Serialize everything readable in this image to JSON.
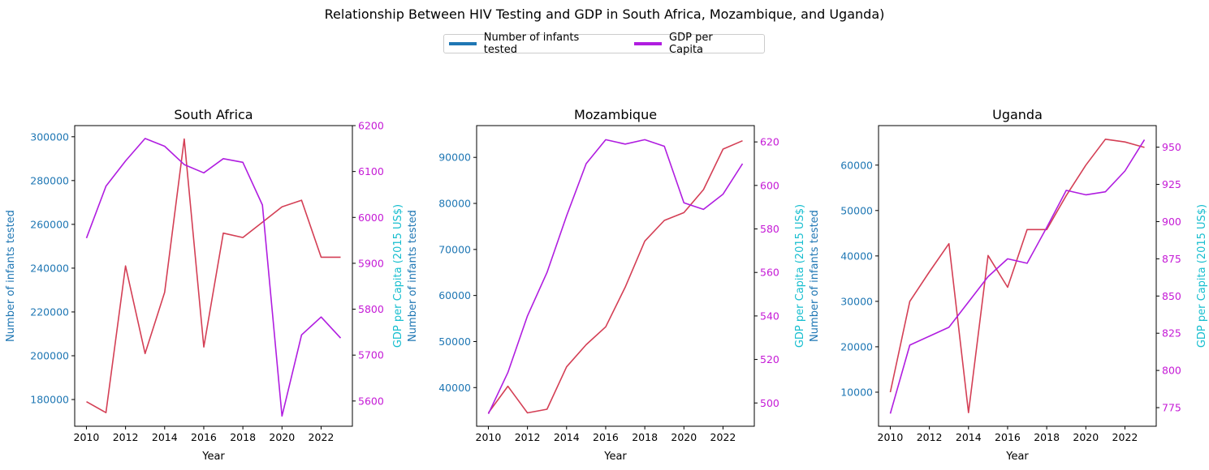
{
  "figure": {
    "title": "Relationship Between HIV Testing and GDP in South Africa, Mozambique, and Uganda)",
    "legend": [
      {
        "label": "Number of infants tested",
        "color": "#1f77b4"
      },
      {
        "label": "GDP per Capita",
        "color": "#b01de0"
      }
    ]
  },
  "chart_data": [
    {
      "type": "line",
      "title": "South Africa",
      "xlabel": "Year",
      "ylabel": "Number of infants tested",
      "y2label": "GDP per Capita (2015 US$)",
      "x": [
        2010,
        2011,
        2012,
        2013,
        2014,
        2015,
        2016,
        2017,
        2018,
        2019,
        2020,
        2021,
        2022,
        2023
      ],
      "xlim": [
        2009.4,
        2023.6
      ],
      "xticks": [
        2010,
        2012,
        2014,
        2016,
        2018,
        2020,
        2022
      ],
      "ylim": [
        167800,
        305100
      ],
      "yticks": [
        180000,
        200000,
        220000,
        240000,
        260000,
        280000,
        300000
      ],
      "y2lim": [
        5545,
        6200
      ],
      "y2ticks": [
        5600,
        5700,
        5800,
        5900,
        6000,
        6100,
        6200
      ],
      "series": [
        {
          "axis": "left",
          "color": "#d43f55",
          "values": [
            179000,
            174000,
            241000,
            201000,
            229000,
            299000,
            204000,
            256000,
            254000,
            261000,
            268000,
            271000,
            245000,
            245000
          ]
        },
        {
          "axis": "right",
          "color": "#b01de0",
          "values": [
            5955,
            6068,
            6123,
            6172,
            6155,
            6115,
            6097,
            6128,
            6120,
            6027,
            5567,
            5744,
            5783,
            5737
          ]
        }
      ]
    },
    {
      "type": "line",
      "title": "Mozambique",
      "xlabel": "Year",
      "ylabel": "Number of infants tested",
      "y2label": "GDP per Capita (2015 US$)",
      "x": [
        2010,
        2011,
        2012,
        2013,
        2014,
        2015,
        2016,
        2017,
        2018,
        2019,
        2020,
        2021,
        2022,
        2023
      ],
      "xlim": [
        2009.4,
        2023.6
      ],
      "xticks": [
        2010,
        2012,
        2014,
        2016,
        2018,
        2020,
        2022
      ],
      "ylim": [
        31600,
        96900
      ],
      "yticks": [
        40000,
        50000,
        60000,
        70000,
        80000,
        90000
      ],
      "y2lim": [
        489.3,
        627.5
      ],
      "y2ticks": [
        500,
        520,
        540,
        560,
        580,
        600,
        620
      ],
      "series": [
        {
          "axis": "left",
          "color": "#d43f55",
          "values": [
            34500,
            40300,
            34500,
            35300,
            44500,
            49300,
            53200,
            61800,
            71800,
            76300,
            78000,
            83000,
            91800,
            93600
          ]
        },
        {
          "axis": "right",
          "color": "#b01de0",
          "values": [
            495,
            514,
            540,
            560,
            586,
            610,
            621,
            619,
            621,
            618,
            592,
            589,
            596,
            610
          ]
        }
      ]
    },
    {
      "type": "line",
      "title": "Uganda",
      "xlabel": "Year",
      "ylabel": "Number of infants tested",
      "y2label": "GDP per Capita (2015 US$)",
      "x": [
        2010,
        2011,
        2012,
        2013,
        2014,
        2015,
        2016,
        2017,
        2018,
        2019,
        2020,
        2021,
        2022,
        2023
      ],
      "xlim": [
        2009.4,
        2023.6
      ],
      "xticks": [
        2010,
        2012,
        2014,
        2016,
        2018,
        2020,
        2022
      ],
      "ylim": [
        2500,
        68700
      ],
      "yticks": [
        10000,
        20000,
        30000,
        40000,
        50000,
        60000
      ],
      "y2lim": [
        762.5,
        964.5
      ],
      "y2ticks": [
        775,
        800,
        825,
        850,
        875,
        900,
        925,
        950
      ],
      "series": [
        {
          "axis": "left",
          "color": "#d43f55",
          "values": [
            10000,
            30000,
            36500,
            42700,
            5500,
            40100,
            33100,
            45800,
            45800,
            53300,
            60000,
            65700,
            65100,
            63900
          ]
        },
        {
          "axis": "right",
          "color": "#b01de0",
          "values": [
            771,
            817,
            823,
            829,
            846,
            863,
            875,
            872,
            896,
            921,
            918,
            920,
            934,
            955
          ]
        }
      ]
    }
  ]
}
